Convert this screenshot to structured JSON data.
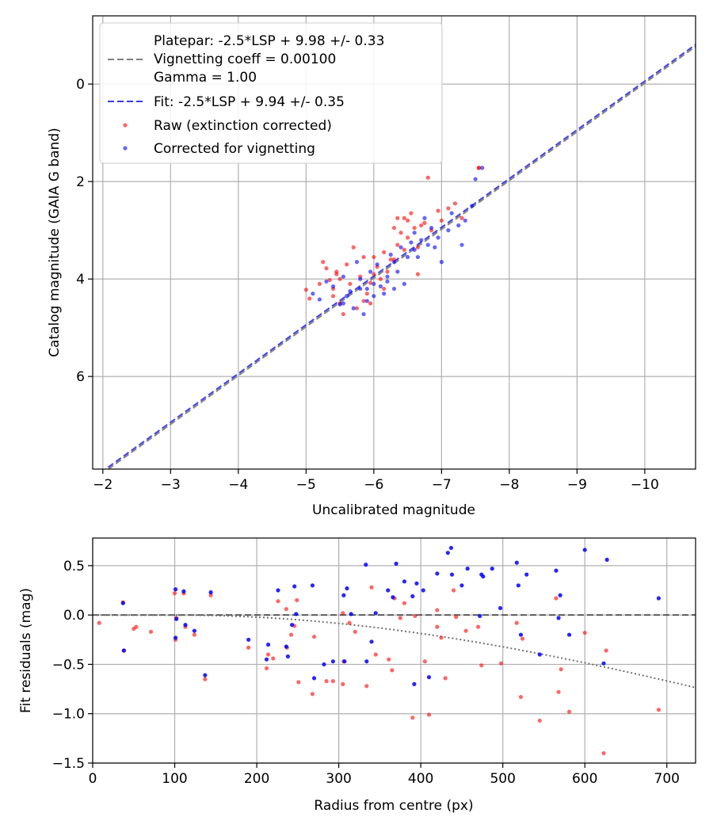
{
  "colors": {
    "raw": "#ff0000",
    "corrected": "#0000ff",
    "platepar_line": "#808080",
    "fit_line": "#3a3ae8",
    "grid": "#b0b0b0",
    "zero_line": "#404040",
    "vignetting_curve": "#707070"
  },
  "chart_data": [
    {
      "type": "scatter",
      "xlabel": "Uncalibrated magnitude",
      "ylabel": "Catalog magnitude (GAIA G band)",
      "xlim": [
        -1.85,
        -10.75
      ],
      "ylim": [
        7.9,
        -1.4
      ],
      "xticks": [
        -2,
        -3,
        -4,
        -5,
        -6,
        -7,
        -8,
        -9,
        -10
      ],
      "xtick_labels": [
        "−2",
        "−3",
        "−4",
        "−5",
        "−6",
        "−7",
        "−8",
        "−9",
        "−10"
      ],
      "yticks": [
        0,
        2,
        4,
        6
      ],
      "ytick_labels": [
        "0",
        "2",
        "4",
        "6"
      ],
      "grid": true,
      "legend_position": "top-left",
      "legend": [
        {
          "label": "Platepar: -2.5*LSP + 9.98 +/- 0.33",
          "marker": "none"
        },
        {
          "label": "Vignetting coeff = 0.00100",
          "marker": "dash-gray"
        },
        {
          "label": "Gamma = 1.00",
          "marker": "none"
        },
        {
          "label": "Fit: -2.5*LSP + 9.94 +/- 0.35",
          "marker": "dash-blue"
        },
        {
          "label": "Raw (extinction corrected)",
          "marker": "dot-red"
        },
        {
          "label": "Corrected for vignetting",
          "marker": "dot-blue"
        }
      ],
      "lines": [
        {
          "name": "Platepar",
          "slope": 1,
          "intercept": 9.98
        },
        {
          "name": "Fit",
          "slope": 1,
          "intercept": 9.94
        }
      ],
      "series": [
        {
          "name": "Raw (extinction corrected)",
          "points": [
            [
              -5.0,
              4.22
            ],
            [
              -5.05,
              4.4
            ],
            [
              -5.2,
              4.1
            ],
            [
              -5.25,
              3.65
            ],
            [
              -5.3,
              3.78
            ],
            [
              -5.35,
              4.02
            ],
            [
              -5.4,
              4.35
            ],
            [
              -5.45,
              3.9
            ],
            [
              -5.5,
              4.5
            ],
            [
              -5.55,
              4.72
            ],
            [
              -5.6,
              3.7
            ],
            [
              -5.7,
              3.35
            ],
            [
              -5.75,
              4.6
            ],
            [
              -5.8,
              3.95
            ],
            [
              -5.85,
              3.55
            ],
            [
              -5.9,
              4.3
            ],
            [
              -5.95,
              4.08
            ],
            [
              -6.0,
              3.9
            ],
            [
              -6.05,
              3.75
            ],
            [
              -6.1,
              4.0
            ],
            [
              -6.15,
              3.45
            ],
            [
              -6.2,
              3.85
            ],
            [
              -6.25,
              3.6
            ],
            [
              -6.3,
              2.95
            ],
            [
              -6.35,
              3.3
            ],
            [
              -6.4,
              3.05
            ],
            [
              -6.45,
              2.75
            ],
            [
              -6.5,
              3.15
            ],
            [
              -6.55,
              2.65
            ],
            [
              -6.6,
              2.95
            ],
            [
              -6.65,
              3.35
            ],
            [
              -6.7,
              2.9
            ],
            [
              -6.75,
              2.85
            ],
            [
              -6.8,
              1.92
            ],
            [
              -6.85,
              3.0
            ],
            [
              -6.95,
              2.6
            ],
            [
              -7.0,
              2.8
            ],
            [
              -7.1,
              2.55
            ],
            [
              -7.2,
              2.45
            ],
            [
              -7.3,
              2.75
            ],
            [
              -7.55,
              1.72
            ],
            [
              -5.45,
              3.85
            ],
            [
              -5.65,
              4.1
            ],
            [
              -6.0,
              3.55
            ],
            [
              -6.3,
              3.6
            ],
            [
              -6.5,
              2.8
            ],
            [
              -5.5,
              4.0
            ],
            [
              -5.85,
              4.45
            ],
            [
              -6.65,
              3.9
            ],
            [
              -6.45,
              3.4
            ],
            [
              -5.4,
              4.2
            ],
            [
              -6.15,
              4.2
            ],
            [
              -5.95,
              4.5
            ],
            [
              -6.35,
              2.75
            ],
            [
              -7.55,
              1.72
            ]
          ]
        },
        {
          "name": "Corrected for vignetting",
          "points": [
            [
              -5.1,
              4.3
            ],
            [
              -5.2,
              4.42
            ],
            [
              -5.3,
              4.05
            ],
            [
              -5.4,
              4.15
            ],
            [
              -5.5,
              4.52
            ],
            [
              -5.55,
              3.95
            ],
            [
              -5.6,
              4.35
            ],
            [
              -5.7,
              4.6
            ],
            [
              -5.75,
              3.65
            ],
            [
              -5.8,
              4.2
            ],
            [
              -5.85,
              4.72
            ],
            [
              -5.9,
              4.45
            ],
            [
              -5.95,
              3.85
            ],
            [
              -6.0,
              4.1
            ],
            [
              -6.05,
              3.7
            ],
            [
              -6.1,
              4.15
            ],
            [
              -6.15,
              4.3
            ],
            [
              -6.2,
              3.95
            ],
            [
              -6.25,
              3.5
            ],
            [
              -6.3,
              4.2
            ],
            [
              -6.35,
              3.85
            ],
            [
              -6.4,
              3.35
            ],
            [
              -6.45,
              4.1
            ],
            [
              -6.5,
              3.55
            ],
            [
              -6.55,
              3.25
            ],
            [
              -6.6,
              3.05
            ],
            [
              -6.65,
              3.55
            ],
            [
              -6.7,
              3.2
            ],
            [
              -6.75,
              2.75
            ],
            [
              -6.8,
              3.3
            ],
            [
              -6.85,
              2.95
            ],
            [
              -6.9,
              3.35
            ],
            [
              -6.95,
              3.15
            ],
            [
              -7.0,
              3.65
            ],
            [
              -7.1,
              3.0
            ],
            [
              -7.15,
              2.65
            ],
            [
              -7.25,
              2.9
            ],
            [
              -7.3,
              3.3
            ],
            [
              -7.35,
              2.8
            ],
            [
              -7.45,
              2.5
            ],
            [
              -7.5,
              1.95
            ],
            [
              -7.6,
              1.72
            ],
            [
              -5.65,
              4.25
            ],
            [
              -6.0,
              4.35
            ],
            [
              -6.2,
              4.05
            ],
            [
              -5.8,
              4.0
            ],
            [
              -6.3,
              3.65
            ],
            [
              -5.9,
              4.2
            ],
            [
              -6.6,
              3.4
            ],
            [
              -5.55,
              4.5
            ]
          ]
        }
      ]
    },
    {
      "type": "scatter",
      "xlabel": "Radius from centre (px)",
      "ylabel": "Fit residuals (mag)",
      "xlim": [
        0,
        735
      ],
      "ylim": [
        -1.5,
        0.78
      ],
      "xticks": [
        0,
        100,
        200,
        300,
        400,
        500,
        600,
        700
      ],
      "xtick_labels": [
        "0",
        "100",
        "200",
        "300",
        "400",
        "500",
        "600",
        "700"
      ],
      "yticks": [
        0.5,
        0.0,
        -0.5,
        -1.0,
        -1.5
      ],
      "ytick_labels": [
        "0.5",
        "0.0",
        "−0.5",
        "−1.0",
        "−1.5"
      ],
      "grid": true,
      "reference_line": {
        "name": "zero",
        "y": 0.0
      },
      "vignetting_curve": {
        "name": "Vignetting model",
        "coeff": 0.001,
        "x_start": 100
      },
      "series": [
        {
          "name": "Raw (extinction corrected)",
          "points": [
            [
              8,
              -0.08
            ],
            [
              37,
              0.13
            ],
            [
              38,
              -0.36
            ],
            [
              50,
              -0.14
            ],
            [
              53,
              -0.12
            ],
            [
              71,
              -0.17
            ],
            [
              100,
              0.22
            ],
            [
              101,
              -0.25
            ],
            [
              102,
              -0.03
            ],
            [
              111,
              0.22
            ],
            [
              113,
              -0.12
            ],
            [
              124,
              -0.2
            ],
            [
              137,
              -0.65
            ],
            [
              144,
              0.2
            ],
            [
              190,
              -0.33
            ],
            [
              212,
              -0.54
            ],
            [
              214,
              -0.4
            ],
            [
              220,
              -0.44
            ],
            [
              226,
              0.14
            ],
            [
              236,
              0.06
            ],
            [
              237,
              -0.33
            ],
            [
              242,
              -0.2
            ],
            [
              246,
              -0.11
            ],
            [
              249,
              0.15
            ],
            [
              251,
              -0.68
            ],
            [
              268,
              -0.8
            ],
            [
              270,
              -0.22
            ],
            [
              285,
              -0.67
            ],
            [
              293,
              -0.67
            ],
            [
              305,
              -0.7
            ],
            [
              306,
              -0.47
            ],
            [
              313,
              -0.08
            ],
            [
              320,
              -0.17
            ],
            [
              334,
              -0.72
            ],
            [
              340,
              0.28
            ],
            [
              345,
              -0.4
            ],
            [
              361,
              -0.45
            ],
            [
              365,
              -0.56
            ],
            [
              368,
              0.17
            ],
            [
              375,
              -0.03
            ],
            [
              380,
              0.12
            ],
            [
              390,
              -1.04
            ],
            [
              393,
              -0.01
            ],
            [
              405,
              -0.47
            ],
            [
              410,
              -1.01
            ],
            [
              420,
              -0.12
            ],
            [
              425,
              -0.23
            ],
            [
              430,
              -0.64
            ],
            [
              440,
              0.25
            ],
            [
              443,
              -0.02
            ],
            [
              455,
              -0.16
            ],
            [
              470,
              -0.12
            ],
            [
              474,
              -0.51
            ],
            [
              498,
              -0.49
            ],
            [
              517,
              -0.08
            ],
            [
              522,
              -0.83
            ],
            [
              524,
              -0.24
            ],
            [
              545,
              -1.07
            ],
            [
              565,
              0.17
            ],
            [
              568,
              -0.78
            ],
            [
              571,
              -0.55
            ],
            [
              581,
              -0.98
            ],
            [
              600,
              -0.18
            ],
            [
              623,
              -1.4
            ],
            [
              626,
              -0.36
            ],
            [
              690,
              -0.96
            ],
            [
              305,
              0.02
            ],
            [
              420,
              0.05
            ]
          ]
        },
        {
          "name": "Corrected for vignetting",
          "points": [
            [
              37,
              0.12
            ],
            [
              38,
              -0.36
            ],
            [
              101,
              0.26
            ],
            [
              101,
              -0.23
            ],
            [
              102,
              -0.04
            ],
            [
              111,
              0.24
            ],
            [
              113,
              -0.1
            ],
            [
              124,
              -0.16
            ],
            [
              137,
              -0.61
            ],
            [
              144,
              0.23
            ],
            [
              190,
              -0.25
            ],
            [
              212,
              -0.45
            ],
            [
              214,
              -0.3
            ],
            [
              226,
              0.25
            ],
            [
              236,
              -0.32
            ],
            [
              238,
              -0.42
            ],
            [
              243,
              -0.1
            ],
            [
              246,
              0.29
            ],
            [
              248,
              0.01
            ],
            [
              268,
              0.3
            ],
            [
              270,
              -0.64
            ],
            [
              282,
              -0.5
            ],
            [
              293,
              -0.47
            ],
            [
              306,
              0.2
            ],
            [
              307,
              -0.47
            ],
            [
              315,
              0.01
            ],
            [
              333,
              0.51
            ],
            [
              334,
              -0.47
            ],
            [
              340,
              -0.27
            ],
            [
              345,
              0.02
            ],
            [
              360,
              0.25
            ],
            [
              366,
              0.18
            ],
            [
              370,
              0.52
            ],
            [
              380,
              0.34
            ],
            [
              390,
              0.19
            ],
            [
              392,
              -0.7
            ],
            [
              403,
              0.25
            ],
            [
              410,
              -0.63
            ],
            [
              420,
              0.42
            ],
            [
              433,
              0.63
            ],
            [
              437,
              0.68
            ],
            [
              438,
              0.41
            ],
            [
              450,
              0.3
            ],
            [
              457,
              0.47
            ],
            [
              474,
              0.41
            ],
            [
              476,
              0.39
            ],
            [
              487,
              0.47
            ],
            [
              497,
              0.07
            ],
            [
              517,
              0.53
            ],
            [
              519,
              0.3
            ],
            [
              522,
              -0.2
            ],
            [
              529,
              0.41
            ],
            [
              545,
              -0.4
            ],
            [
              565,
              0.45
            ],
            [
              568,
              -0.03
            ],
            [
              570,
              0.2
            ],
            [
              581,
              -0.2
            ],
            [
              600,
              0.66
            ],
            [
              623,
              -0.49
            ],
            [
              627,
              0.56
            ],
            [
              690,
              0.17
            ],
            [
              310,
              0.27
            ],
            [
              395,
              0.32
            ],
            [
              472,
              -0.01
            ]
          ]
        }
      ]
    }
  ]
}
